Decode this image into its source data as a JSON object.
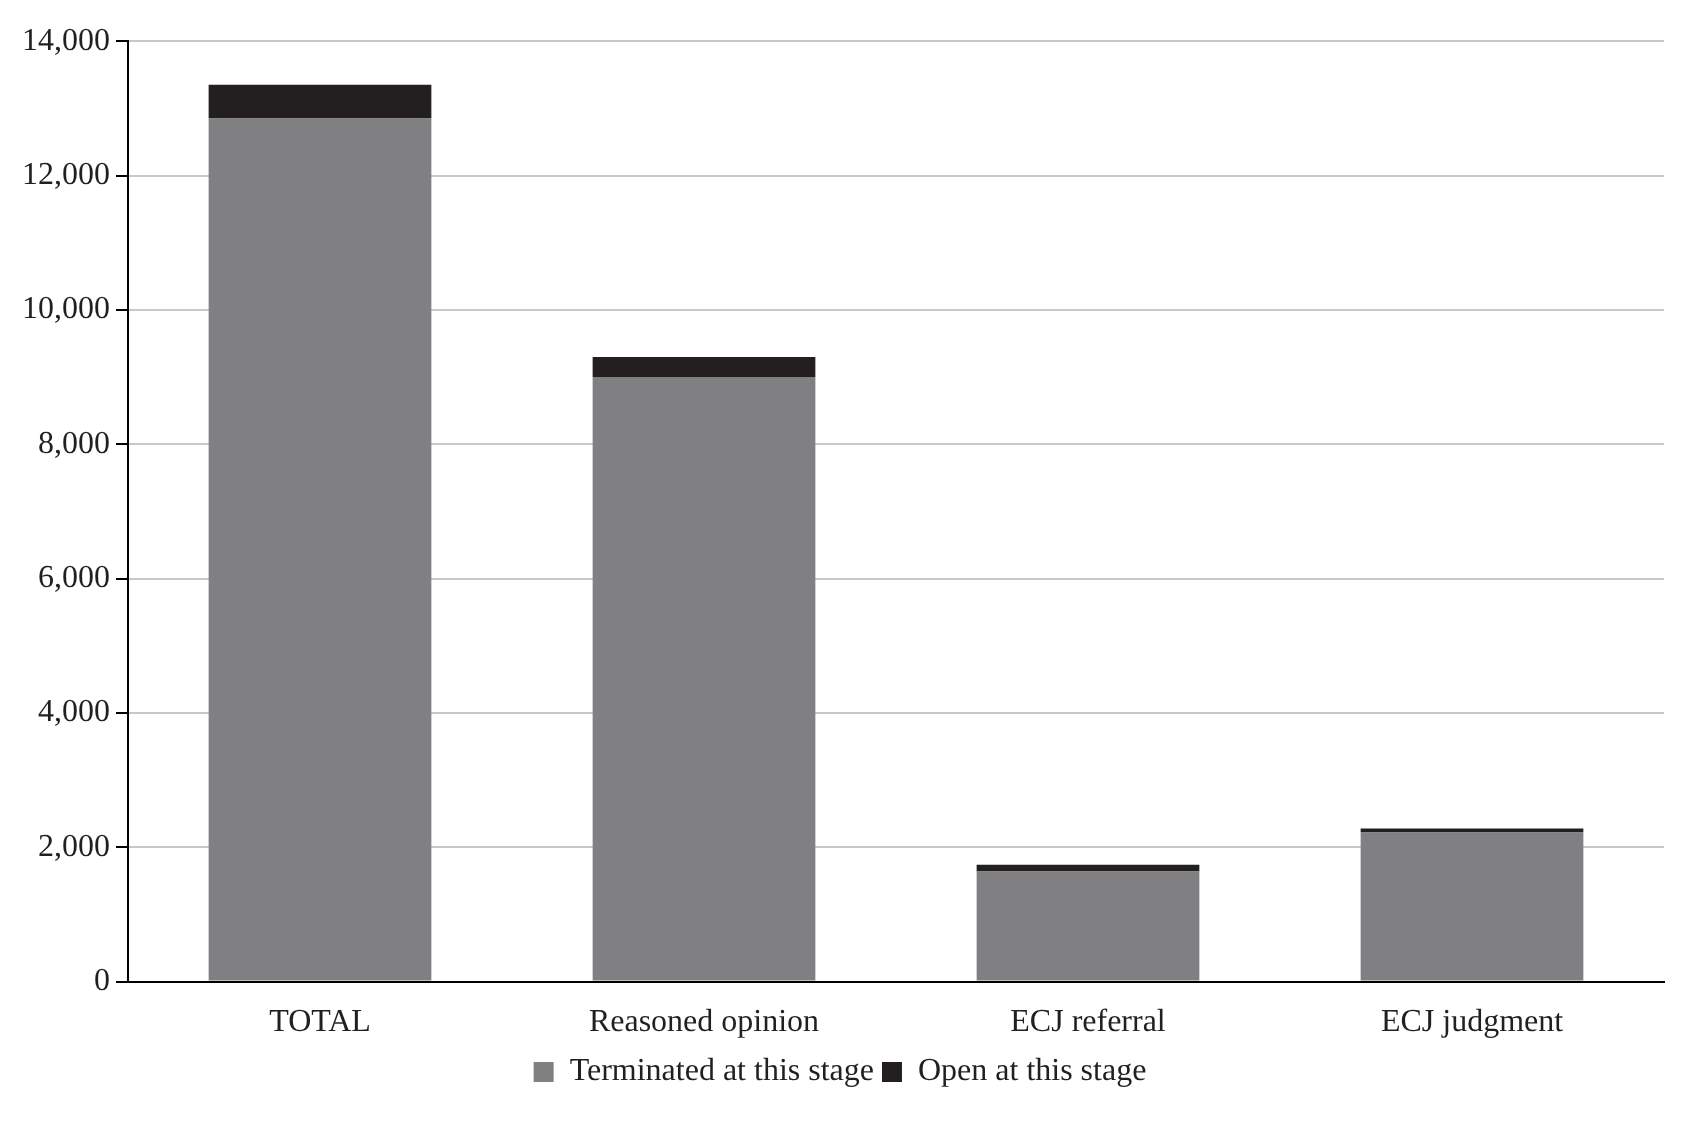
{
  "chart_data": {
    "type": "bar",
    "stacked": true,
    "categories": [
      "TOTAL",
      "Reasoned opinion",
      "ECJ referral",
      "ECJ judgment"
    ],
    "series": [
      {
        "name": "Terminated at this stage",
        "color": "#808083",
        "values": [
          12850,
          9000,
          1640,
          2220
        ]
      },
      {
        "name": "Open at this stage",
        "color": "#231f20",
        "values": [
          500,
          300,
          100,
          60
        ]
      }
    ],
    "ylim": [
      0,
      14000
    ],
    "yticks": [
      {
        "value": 0,
        "label": "0"
      },
      {
        "value": 2000,
        "label": "2,000"
      },
      {
        "value": 4000,
        "label": "4,000"
      },
      {
        "value": 6000,
        "label": "6,000"
      },
      {
        "value": 8000,
        "label": "8,000"
      },
      {
        "value": 10000,
        "label": "10,000"
      },
      {
        "value": 12000,
        "label": "12,000"
      },
      {
        "value": 14000,
        "label": "14,000"
      }
    ],
    "grid": "y",
    "legend": "bottom"
  }
}
